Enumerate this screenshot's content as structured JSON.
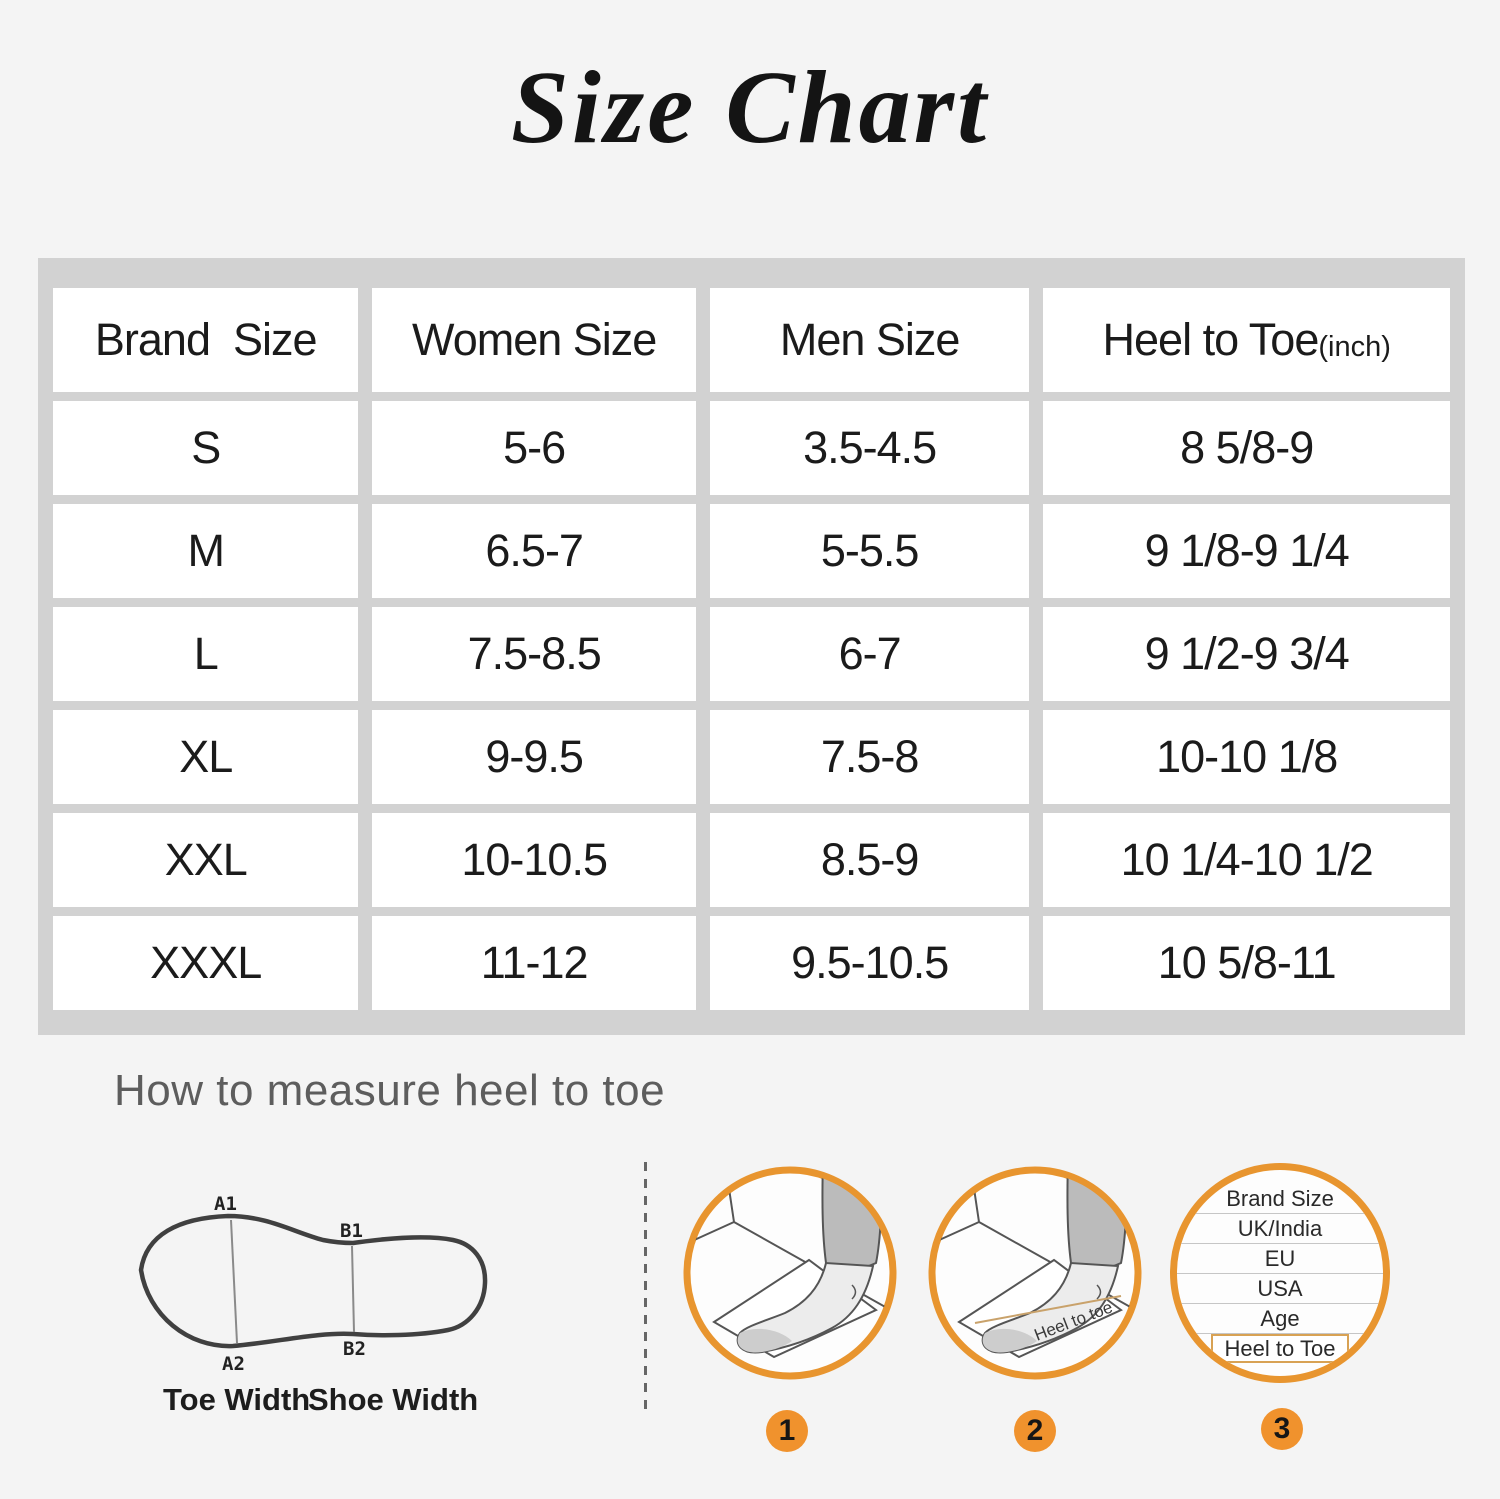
{
  "title": "Size Chart",
  "size_table": {
    "headers": [
      "Brand  Size",
      "Women Size",
      "Men Size",
      "Heel to Toe"
    ],
    "header_unit": "(inch)",
    "rows": [
      [
        "S",
        "5-6",
        "3.5-4.5",
        "8 5/8-9"
      ],
      [
        "M",
        "6.5-7",
        "5-5.5",
        "9 1/8-9 1/4"
      ],
      [
        "L",
        "7.5-8.5",
        "6-7",
        "9 1/2-9 3/4"
      ],
      [
        "XL",
        "9-9.5",
        "7.5-8",
        "10-10 1/8"
      ],
      [
        "XXL",
        "10-10.5",
        "8.5-9",
        "10 1/4-10 1/2"
      ],
      [
        "XXXL",
        "11-12",
        "9.5-10.5",
        "10 5/8-11"
      ]
    ]
  },
  "measure_section": {
    "heading": "How to measure heel to toe",
    "sole_diagram": {
      "labels": {
        "a1": "A1",
        "b1": "B1",
        "a2": "A2",
        "b2": "B2"
      },
      "captions": {
        "toe": "Toe Width",
        "shoe": "Shoe Width"
      }
    },
    "steps": [
      {
        "number": "1"
      },
      {
        "number": "2",
        "line_label": "Heel to toe"
      },
      {
        "number": "3",
        "rows": [
          "Brand Size",
          "UK/India",
          "EU",
          "USA",
          "Age",
          "Heel to Toe"
        ]
      }
    ]
  },
  "colors": {
    "background": "#f4f4f4",
    "table_panel": "#d2d2d2",
    "accent_orange": "#e8952f",
    "badge_orange": "#f0922d",
    "measure_line_tan": "#c9a26b",
    "heading_gray": "#5d5d5d"
  }
}
